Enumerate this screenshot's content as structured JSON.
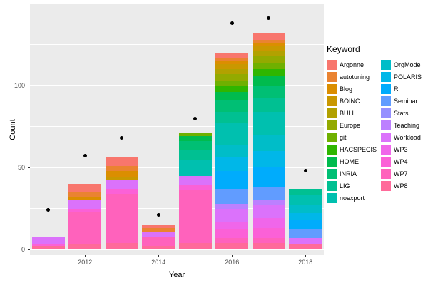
{
  "figure": {
    "xlabel": "Year",
    "ylabel": "Count",
    "legend_title": "Keyword"
  },
  "chart_data": {
    "type": "bar",
    "stacked": true,
    "title": "",
    "xlabel": "Year",
    "ylabel": "Count",
    "legend_title": "Keyword",
    "legend_position": "right",
    "x_ticks": [
      2012,
      2014,
      2016,
      2018
    ],
    "y_ticks": [
      0,
      50,
      100
    ],
    "y_minor_ticks": [
      25,
      75,
      125
    ],
    "ylim": [
      0,
      149
    ],
    "grid": true,
    "layout": {
      "panel_background": "#EBEBEB",
      "grid_color": "#FFFFFF",
      "point_color": "#000000",
      "axis_text_color": "#4D4D4D"
    },
    "legend_columns": [
      12,
      11
    ],
    "keywords": [
      {
        "name": "Argonne",
        "color": "#F8766D"
      },
      {
        "name": "autotuning",
        "color": "#EA8331"
      },
      {
        "name": "Blog",
        "color": "#DB8E00"
      },
      {
        "name": "BOINC",
        "color": "#C99800"
      },
      {
        "name": "BULL",
        "color": "#B2A100"
      },
      {
        "name": "Europe",
        "color": "#93AA00"
      },
      {
        "name": "git",
        "color": "#6FB000"
      },
      {
        "name": "HACSPECIS",
        "color": "#2FB600"
      },
      {
        "name": "HOME",
        "color": "#00BB4E"
      },
      {
        "name": "INRIA",
        "color": "#00BF74"
      },
      {
        "name": "LIG",
        "color": "#00C092"
      },
      {
        "name": "noexport",
        "color": "#00C0AF"
      },
      {
        "name": "OrgMode",
        "color": "#00BDC8"
      },
      {
        "name": "POLARIS",
        "color": "#00B7E8"
      },
      {
        "name": "R",
        "color": "#00ACFC"
      },
      {
        "name": "Seminar",
        "color": "#619CFF"
      },
      {
        "name": "Stats",
        "color": "#9590FF"
      },
      {
        "name": "Teaching",
        "color": "#BC80FF"
      },
      {
        "name": "Workload",
        "color": "#DB72FB"
      },
      {
        "name": "WP3",
        "color": "#F066EA"
      },
      {
        "name": "WP4",
        "color": "#FB61D7"
      },
      {
        "name": "WP7",
        "color": "#FF62BC"
      },
      {
        "name": "WP8",
        "color": "#FF6A9A"
      }
    ],
    "bars": [
      {
        "year": 2011,
        "segments": [
          {
            "keyword": "WP8",
            "value": 2
          },
          {
            "keyword": "WP4",
            "value": 1
          },
          {
            "keyword": "Workload",
            "value": 5
          }
        ]
      },
      {
        "year": 2012,
        "segments": [
          {
            "keyword": "WP8",
            "value": 3
          },
          {
            "keyword": "WP7",
            "value": 20
          },
          {
            "keyword": "WP4",
            "value": 2
          },
          {
            "keyword": "Workload",
            "value": 5
          },
          {
            "keyword": "Blog",
            "value": 2
          },
          {
            "keyword": "autotuning",
            "value": 3
          },
          {
            "keyword": "Argonne",
            "value": 5
          }
        ]
      },
      {
        "year": 2013,
        "segments": [
          {
            "keyword": "WP8",
            "value": 4
          },
          {
            "keyword": "WP7",
            "value": 30
          },
          {
            "keyword": "WP4",
            "value": 3
          },
          {
            "keyword": "Workload",
            "value": 5
          },
          {
            "keyword": "BOINC",
            "value": 2
          },
          {
            "keyword": "Blog",
            "value": 4
          },
          {
            "keyword": "autotuning",
            "value": 3
          },
          {
            "keyword": "Argonne",
            "value": 5
          }
        ]
      },
      {
        "year": 2014,
        "segments": [
          {
            "keyword": "WP8",
            "value": 2
          },
          {
            "keyword": "WP7",
            "value": 6
          },
          {
            "keyword": "Workload",
            "value": 3
          },
          {
            "keyword": "autotuning",
            "value": 2
          },
          {
            "keyword": "Argonne",
            "value": 2
          }
        ]
      },
      {
        "year": 2015,
        "segments": [
          {
            "keyword": "WP8",
            "value": 4
          },
          {
            "keyword": "WP7",
            "value": 32
          },
          {
            "keyword": "WP4",
            "value": 3
          },
          {
            "keyword": "Workload",
            "value": 6
          },
          {
            "keyword": "noexport",
            "value": 10
          },
          {
            "keyword": "LIG",
            "value": 6
          },
          {
            "keyword": "INRIA",
            "value": 5
          },
          {
            "keyword": "HOME",
            "value": 3
          },
          {
            "keyword": "git",
            "value": 2
          }
        ]
      },
      {
        "year": 2016,
        "segments": [
          {
            "keyword": "WP8",
            "value": 4
          },
          {
            "keyword": "WP7",
            "value": 3
          },
          {
            "keyword": "WP4",
            "value": 5
          },
          {
            "keyword": "WP3",
            "value": 5
          },
          {
            "keyword": "Workload",
            "value": 8
          },
          {
            "keyword": "Teaching",
            "value": 3
          },
          {
            "keyword": "Seminar",
            "value": 9
          },
          {
            "keyword": "R",
            "value": 11
          },
          {
            "keyword": "POLARIS",
            "value": 8
          },
          {
            "keyword": "OrgMode",
            "value": 8
          },
          {
            "keyword": "noexport",
            "value": 13
          },
          {
            "keyword": "LIG",
            "value": 7
          },
          {
            "keyword": "INRIA",
            "value": 7
          },
          {
            "keyword": "HOME",
            "value": 5
          },
          {
            "keyword": "HACSPECIS",
            "value": 4
          },
          {
            "keyword": "git",
            "value": 3
          },
          {
            "keyword": "Europe",
            "value": 4
          },
          {
            "keyword": "BULL",
            "value": 3
          },
          {
            "keyword": "BOINC",
            "value": 3
          },
          {
            "keyword": "Blog",
            "value": 2
          },
          {
            "keyword": "autotuning",
            "value": 2
          },
          {
            "keyword": "Argonne",
            "value": 3
          }
        ]
      },
      {
        "year": 2017,
        "segments": [
          {
            "keyword": "WP8",
            "value": 4
          },
          {
            "keyword": "WP7",
            "value": 3
          },
          {
            "keyword": "WP4",
            "value": 6
          },
          {
            "keyword": "WP3",
            "value": 6
          },
          {
            "keyword": "Workload",
            "value": 8
          },
          {
            "keyword": "Teaching",
            "value": 3
          },
          {
            "keyword": "Seminar",
            "value": 8
          },
          {
            "keyword": "R",
            "value": 12
          },
          {
            "keyword": "POLARIS",
            "value": 10
          },
          {
            "keyword": "OrgMode",
            "value": 10
          },
          {
            "keyword": "noexport",
            "value": 14
          },
          {
            "keyword": "LIG",
            "value": 8
          },
          {
            "keyword": "INRIA",
            "value": 8
          },
          {
            "keyword": "HOME",
            "value": 6
          },
          {
            "keyword": "HACSPECIS",
            "value": 4
          },
          {
            "keyword": "git",
            "value": 4
          },
          {
            "keyword": "Europe",
            "value": 4
          },
          {
            "keyword": "BULL",
            "value": 3
          },
          {
            "keyword": "BOINC",
            "value": 3
          },
          {
            "keyword": "Blog",
            "value": 2
          },
          {
            "keyword": "autotuning",
            "value": 2
          },
          {
            "keyword": "Argonne",
            "value": 4
          }
        ]
      },
      {
        "year": 2018,
        "segments": [
          {
            "keyword": "WP8",
            "value": 3
          },
          {
            "keyword": "Workload",
            "value": 4
          },
          {
            "keyword": "Seminar",
            "value": 5
          },
          {
            "keyword": "R",
            "value": 6
          },
          {
            "keyword": "POLARIS",
            "value": 4
          },
          {
            "keyword": "OrgMode",
            "value": 5
          },
          {
            "keyword": "noexport",
            "value": 6
          },
          {
            "keyword": "LIG",
            "value": 4
          }
        ]
      },
      {
        "year": 2018,
        "segments": []
      }
    ],
    "points": {
      "type": "scatter",
      "x": [
        2011,
        2012,
        2013,
        2014,
        2015,
        2016,
        2017,
        2018
      ],
      "y": [
        24,
        57,
        68,
        21,
        80,
        138,
        141,
        48
      ]
    }
  }
}
